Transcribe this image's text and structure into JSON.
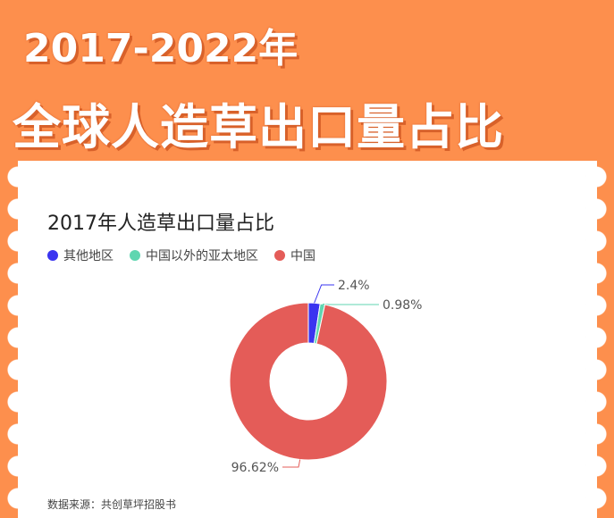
{
  "header": {
    "line1": "2017-2022年",
    "line2": "全球人造草出口量占比"
  },
  "chart_data": {
    "type": "pie",
    "variant": "donut",
    "title": "2017年人造草出口量占比",
    "categories": [
      "其他地区",
      "中国以外的亚太地区",
      "中国"
    ],
    "values": [
      2.4,
      0.98,
      96.62
    ],
    "labels": [
      "2.4%",
      "0.98%",
      "96.62%"
    ],
    "colors": [
      "#3a34f0",
      "#5fd6b0",
      "#e45c58"
    ],
    "legend": "top-left"
  },
  "source": "数据来源：共创草坪招股书"
}
